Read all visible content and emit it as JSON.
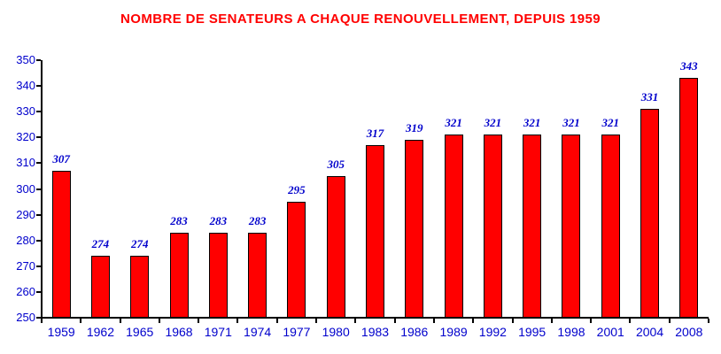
{
  "chart_data": {
    "type": "bar",
    "title": "NOMBRE DE SENATEURS A CHAQUE RENOUVELLEMENT, DEPUIS 1959",
    "categories": [
      "1959",
      "1962",
      "1965",
      "1968",
      "1971",
      "1974",
      "1977",
      "1980",
      "1983",
      "1986",
      "1989",
      "1992",
      "1995",
      "1998",
      "2001",
      "2004",
      "2008"
    ],
    "values": [
      307,
      274,
      274,
      283,
      283,
      283,
      295,
      305,
      317,
      319,
      321,
      321,
      321,
      321,
      321,
      331,
      343
    ],
    "xlabel": "",
    "ylabel": "",
    "ylim": [
      250,
      350
    ],
    "ytick_step": 10,
    "ytick_labels": [
      "250",
      "260",
      "270",
      "280",
      "290",
      "300",
      "310",
      "320",
      "330",
      "340",
      "350"
    ],
    "grid": false,
    "legend": "none",
    "colors": {
      "title": "#FF0000",
      "bar_fill": "#FF0000",
      "bar_border": "#000000",
      "value_label": "#0000CC",
      "axis_label": "#0000CC",
      "axis_line": "#000000",
      "background": "#FFFFFF"
    }
  }
}
